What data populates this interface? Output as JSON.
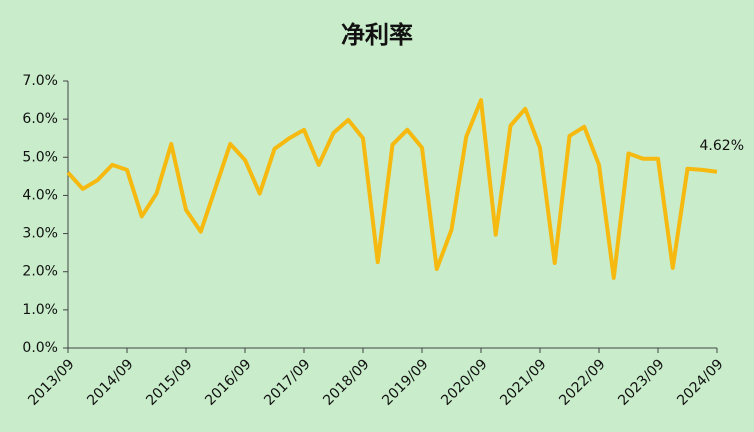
{
  "chart_data": {
    "type": "line",
    "title": "净利率",
    "categories": [
      "2013/09",
      null,
      null,
      null,
      "2014/09",
      null,
      null,
      null,
      "2015/09",
      null,
      null,
      null,
      "2016/09",
      null,
      null,
      null,
      "2017/09",
      null,
      null,
      null,
      "2018/09",
      null,
      null,
      null,
      "2019/09",
      null,
      null,
      null,
      "2020/09",
      null,
      null,
      null,
      "2021/09",
      null,
      null,
      null,
      "2022/09",
      null,
      null,
      null,
      "2023/09",
      null,
      null,
      null,
      "2024/09"
    ],
    "series": [
      {
        "color": "#f5b90f",
        "values": [
          4.6,
          4.17,
          4.4,
          4.8,
          4.67,
          3.45,
          4.05,
          5.35,
          3.62,
          3.05,
          4.2,
          5.35,
          4.93,
          4.05,
          5.22,
          5.5,
          5.72,
          4.8,
          5.64,
          5.98,
          5.5,
          2.25,
          5.33,
          5.72,
          5.25,
          2.07,
          3.1,
          5.54,
          6.5,
          2.97,
          5.83,
          6.27,
          5.25,
          2.23,
          5.56,
          5.8,
          4.8,
          1.84,
          5.1,
          4.96,
          4.96,
          2.1,
          4.7,
          4.67,
          4.62
        ],
        "value_labels": [
          null,
          null,
          null,
          null,
          null,
          null,
          null,
          null,
          null,
          null,
          null,
          null,
          null,
          null,
          null,
          null,
          null,
          null,
          null,
          null,
          null,
          null,
          null,
          null,
          null,
          null,
          null,
          null,
          null,
          null,
          null,
          null,
          null,
          null,
          null,
          null,
          null,
          null,
          null,
          null,
          null,
          null,
          null,
          null,
          "4.62%"
        ]
      }
    ],
    "ylim": [
      0,
      7
    ],
    "yticks": [
      {
        "value": 0,
        "label": "0.0%"
      },
      {
        "value": 1,
        "label": "1.0%"
      },
      {
        "value": 2,
        "label": "2.0%"
      },
      {
        "value": 3,
        "label": "3.0%"
      },
      {
        "value": 4,
        "label": "4.0%"
      },
      {
        "value": 5,
        "label": "5.0%"
      },
      {
        "value": 6,
        "label": "6.0%"
      },
      {
        "value": 7,
        "label": "7.0%"
      }
    ],
    "grid": false
  }
}
